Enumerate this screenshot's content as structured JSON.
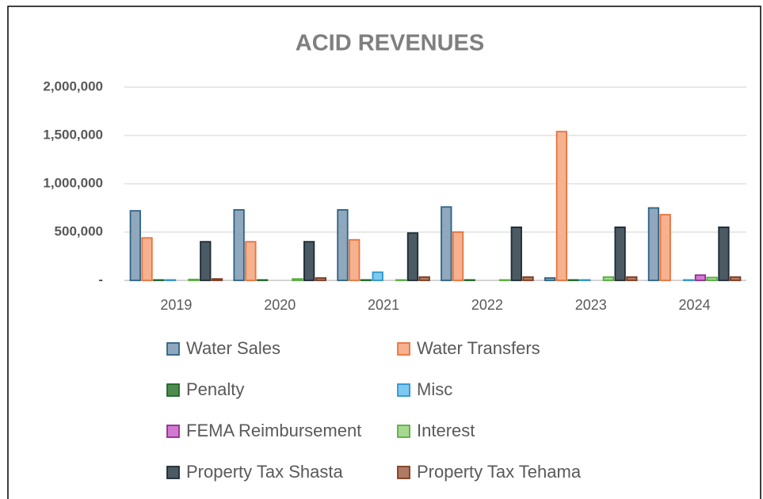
{
  "chart_data": {
    "type": "bar",
    "title": "ACID REVENUES",
    "categories": [
      "2019",
      "2020",
      "2021",
      "2022",
      "2023",
      "2024"
    ],
    "series": [
      {
        "name": "Water Sales",
        "color": "#8fa8bd",
        "border": "#2f6283",
        "values": [
          720000,
          730000,
          730000,
          760000,
          25000,
          750000
        ]
      },
      {
        "name": "Water Transfers",
        "color": "#f6b18e",
        "border": "#e8733d",
        "values": [
          440000,
          400000,
          420000,
          500000,
          1540000,
          680000
        ]
      },
      {
        "name": "Penalty",
        "color": "#4f8a4f",
        "border": "#1d6628",
        "values": [
          5000,
          5000,
          5000,
          5000,
          5000,
          0
        ]
      },
      {
        "name": "Misc",
        "color": "#7ccaf0",
        "border": "#2d94cc",
        "values": [
          5000,
          0,
          85000,
          0,
          5000,
          5000
        ]
      },
      {
        "name": "FEMA Reimbursement",
        "color": "#d27ad2",
        "border": "#8e2f8e",
        "values": [
          0,
          0,
          0,
          0,
          0,
          55000
        ]
      },
      {
        "name": "Interest",
        "color": "#a6d98f",
        "border": "#58ad41",
        "values": [
          10000,
          15000,
          5000,
          5000,
          35000,
          30000
        ]
      },
      {
        "name": "Property Tax Shasta",
        "color": "#4c5a64",
        "border": "#1d2b35",
        "values": [
          400000,
          400000,
          490000,
          550000,
          550000,
          550000
        ]
      },
      {
        "name": "Property Tax Tehama",
        "color": "#b07a64",
        "border": "#7d3c22",
        "values": [
          15000,
          25000,
          35000,
          35000,
          35000,
          35000
        ]
      }
    ],
    "ylim": [
      0,
      2000000
    ],
    "yticks": [
      {
        "value": 0,
        "label": "-"
      },
      {
        "value": 500000,
        "label": "500,000"
      },
      {
        "value": 1000000,
        "label": "1,000,000"
      },
      {
        "value": 1500000,
        "label": "1,500,000"
      },
      {
        "value": 2000000,
        "label": "2,000,000"
      }
    ],
    "grid": true,
    "legend": "bottom"
  }
}
